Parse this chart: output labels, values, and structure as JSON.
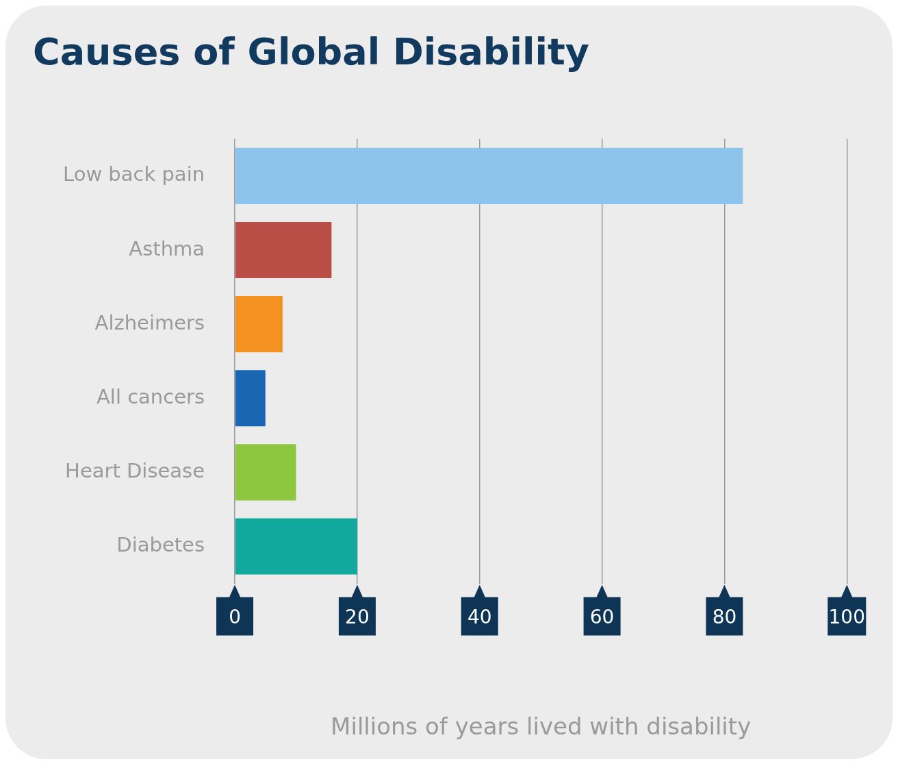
{
  "chart_data": {
    "type": "bar",
    "orientation": "horizontal",
    "title": "Causes of Global Disability",
    "xlabel": "Millions of years lived with disability",
    "categories": [
      "Low back pain",
      "Asthma",
      "Alzheimers",
      "All cancers",
      "Heart Disease",
      "Diabetes"
    ],
    "values": [
      83,
      15.8,
      7.8,
      5,
      10,
      20
    ],
    "colors": [
      "#8dc4ec",
      "#b84e45",
      "#f39220",
      "#1a66b3",
      "#8dc63f",
      "#13a89e"
    ],
    "xlim": [
      0,
      100
    ],
    "xticks": [
      0,
      20,
      40,
      60,
      80,
      100
    ],
    "grid": "x",
    "legend": false
  }
}
